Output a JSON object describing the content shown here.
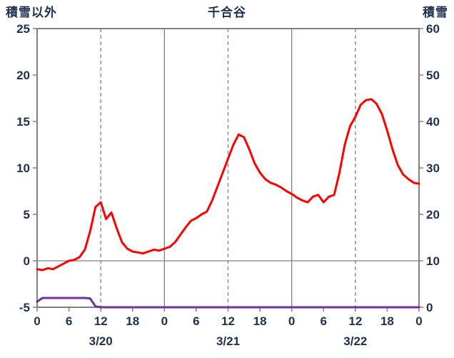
{
  "header": {
    "left_axis_title": "積雪以外",
    "title": "千合谷",
    "right_axis_title": "積雪"
  },
  "colors": {
    "line_red": "#FF0000",
    "line_purple": "#7030A0",
    "grid": "#808080",
    "border": "#808080",
    "text": "#1F3050"
  },
  "chart_data": {
    "type": "line",
    "title": "千合谷",
    "left_axis": {
      "label": "積雪以外",
      "min": -5,
      "max": 25,
      "ticks": [
        -5,
        0,
        5,
        10,
        15,
        20,
        25
      ]
    },
    "right_axis": {
      "label": "積雪",
      "min": 0,
      "max": 60,
      "ticks": [
        0,
        10,
        20,
        30,
        40,
        50,
        60
      ]
    },
    "x_axis": {
      "hours_span": 72,
      "tick_interval": 6,
      "tick_labels": [
        "0",
        "6",
        "12",
        "18",
        "0",
        "6",
        "12",
        "18",
        "0",
        "6",
        "12",
        "18",
        "0"
      ],
      "date_labels": [
        {
          "label": "3/20",
          "hour": 12
        },
        {
          "label": "3/21",
          "hour": 36
        },
        {
          "label": "3/22",
          "hour": 60
        }
      ]
    },
    "gridlines": {
      "h_left_values": [
        0
      ],
      "v_solid_hours": [
        24,
        48
      ],
      "v_dashed_hours": [
        12,
        36,
        60
      ]
    },
    "series": [
      {
        "name": "積雪以外",
        "axis": "left",
        "color": "#FF0000",
        "x_start_hour": 0,
        "x_step": 1,
        "values": [
          -0.9,
          -1.0,
          -0.8,
          -0.9,
          -0.6,
          -0.3,
          0.0,
          0.1,
          0.4,
          1.2,
          3.2,
          5.8,
          6.3,
          4.5,
          5.2,
          3.5,
          2.0,
          1.3,
          1.0,
          0.9,
          0.8,
          1.0,
          1.2,
          1.1,
          1.3,
          1.5,
          2.0,
          2.8,
          3.6,
          4.3,
          4.6,
          5.0,
          5.3,
          6.5,
          8.0,
          9.5,
          11.0,
          12.5,
          13.6,
          13.3,
          12.0,
          10.5,
          9.5,
          8.8,
          8.4,
          8.2,
          7.9,
          7.5,
          7.2,
          6.8,
          6.5,
          6.3,
          6.9,
          7.1,
          6.3,
          6.9,
          7.1,
          9.5,
          12.5,
          14.5,
          15.5,
          16.8,
          17.3,
          17.4,
          16.9,
          15.8,
          14.0,
          12.0,
          10.3,
          9.3,
          8.8,
          8.4,
          8.3
        ]
      },
      {
        "name": "積雪",
        "axis": "right",
        "color": "#7030A0",
        "x_start_hour": 0,
        "x_step": 1,
        "values": [
          1.2,
          2,
          2,
          2,
          2,
          2,
          2,
          2,
          2,
          2,
          1.9,
          0.2,
          0,
          0,
          0,
          0,
          0,
          0,
          0,
          0,
          0,
          0,
          0,
          0,
          0,
          0,
          0,
          0,
          0,
          0,
          0,
          0,
          0,
          0,
          0,
          0,
          0,
          0,
          0,
          0,
          0,
          0,
          0,
          0,
          0,
          0,
          0,
          0,
          0,
          0,
          0,
          0,
          0,
          0,
          0,
          0,
          0,
          0,
          0,
          0,
          0,
          0,
          0,
          0,
          0,
          0,
          0,
          0,
          0,
          0,
          0,
          0,
          0
        ]
      }
    ]
  }
}
